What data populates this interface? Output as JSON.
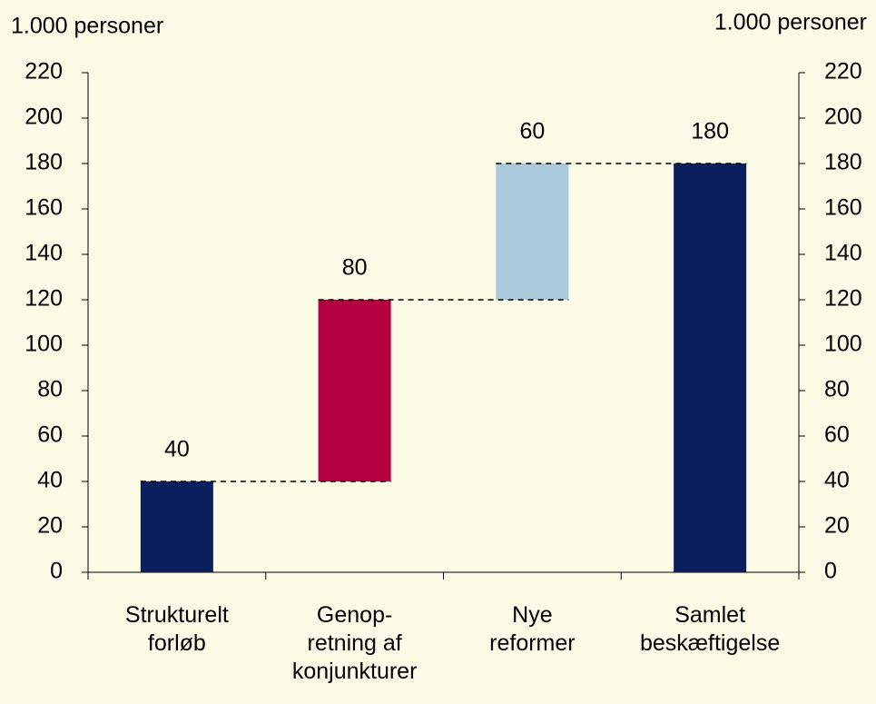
{
  "chart_data": {
    "type": "waterfall",
    "y_label": "1.000 personer",
    "y2_label": "1.000 personer",
    "categories": [
      "Strukturelt\nforløb",
      "Genop-\nretning af\nkonjunkturer",
      "Nye\nreformer",
      "Samlet\nbeskæftigelse"
    ],
    "values": [
      40,
      80,
      60,
      180
    ],
    "measure": [
      "relative",
      "relative",
      "relative",
      "total"
    ],
    "colors": [
      "#0b1f5e",
      "#b5003f",
      "#a9cadb",
      "#0b1f5e"
    ],
    "ylim": [
      0,
      220
    ],
    "yticks": [
      0,
      20,
      40,
      60,
      80,
      100,
      120,
      140,
      160,
      180,
      200,
      220
    ],
    "y2lim": [
      0,
      220
    ],
    "y2ticks": [
      0,
      20,
      40,
      60,
      80,
      100,
      120,
      140,
      160,
      180,
      200,
      220
    ],
    "connectors": true
  }
}
